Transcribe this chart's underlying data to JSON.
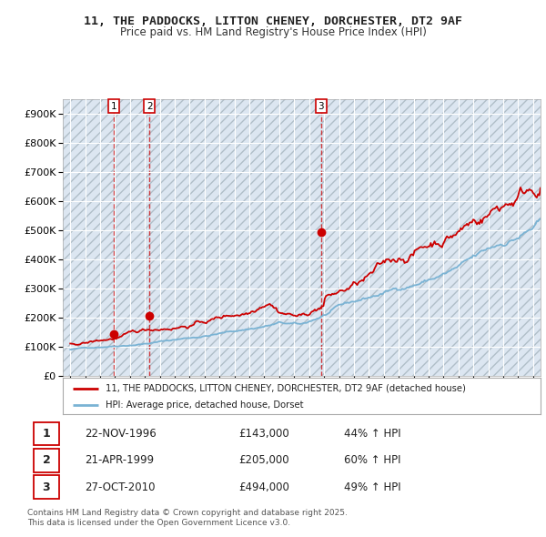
{
  "title": "11, THE PADDOCKS, LITTON CHENEY, DORCHESTER, DT2 9AF",
  "subtitle": "Price paid vs. HM Land Registry's House Price Index (HPI)",
  "background_color": "#ffffff",
  "plot_bg_color": "#dce6f1",
  "grid_color": "#ffffff",
  "hpi_line_color": "#7ab3d4",
  "price_line_color": "#cc0000",
  "ylim": [
    0,
    950000
  ],
  "yticks": [
    0,
    100000,
    200000,
    300000,
    400000,
    500000,
    600000,
    700000,
    800000,
    900000
  ],
  "ytick_labels": [
    "£0",
    "£100K",
    "£200K",
    "£300K",
    "£400K",
    "£500K",
    "£600K",
    "£700K",
    "£800K",
    "£900K"
  ],
  "xlim_start": 1993.5,
  "xlim_end": 2025.5,
  "transactions": [
    {
      "num": 1,
      "date_str": "22-NOV-1996",
      "year": 1996.9,
      "price": 143000,
      "hpi_pct": "44% ↑ HPI"
    },
    {
      "num": 2,
      "date_str": "21-APR-1999",
      "year": 1999.3,
      "price": 205000,
      "hpi_pct": "60% ↑ HPI"
    },
    {
      "num": 3,
      "date_str": "27-OCT-2010",
      "year": 2010.8,
      "price": 494000,
      "hpi_pct": "49% ↑ HPI"
    }
  ],
  "legend_label_price": "11, THE PADDOCKS, LITTON CHENEY, DORCHESTER, DT2 9AF (detached house)",
  "legend_label_hpi": "HPI: Average price, detached house, Dorset",
  "footer": "Contains HM Land Registry data © Crown copyright and database right 2025.\nThis data is licensed under the Open Government Licence v3.0."
}
